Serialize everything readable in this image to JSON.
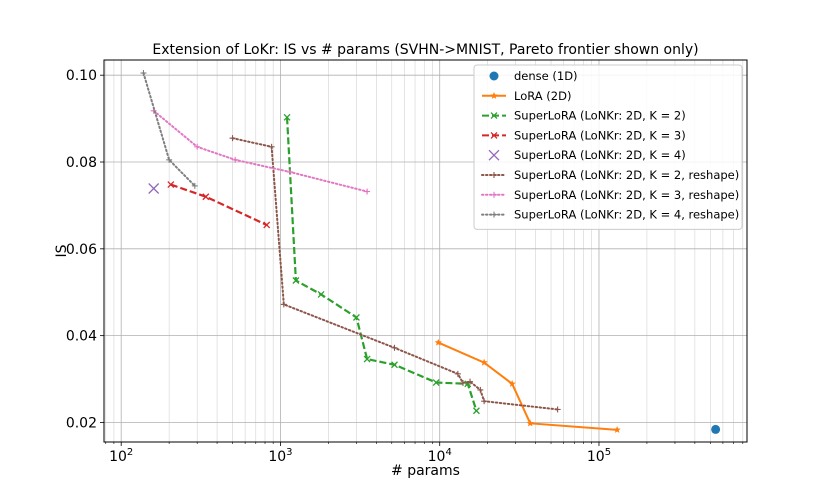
{
  "chart_data": {
    "type": "line",
    "title": "Extension of LoKr: IS vs # params (SVHN->MNIST, Pareto frontier shown only)",
    "xlabel": "# params",
    "ylabel": "IS",
    "xscale": "log",
    "xlim": [
      78,
      850000
    ],
    "ylim": [
      0.0155,
      0.1035
    ],
    "xticks": [
      {
        "value": 100,
        "base": "10",
        "exp": "2"
      },
      {
        "value": 1000,
        "base": "10",
        "exp": "3"
      },
      {
        "value": 10000,
        "base": "10",
        "exp": "4"
      },
      {
        "value": 100000,
        "base": "10",
        "exp": "5"
      }
    ],
    "yticks": [
      {
        "value": 0.02,
        "label": "0.02"
      },
      {
        "value": 0.04,
        "label": "0.04"
      },
      {
        "value": 0.06,
        "label": "0.06"
      },
      {
        "value": 0.08,
        "label": "0.08"
      },
      {
        "value": 0.1,
        "label": "0.10"
      }
    ],
    "grid": true,
    "legend_position": "top-right",
    "series": [
      {
        "name": "dense (1D)",
        "color": "#1f77b4",
        "style": "dot",
        "marker": "circle",
        "x": [
          540000
        ],
        "y": [
          0.0184
        ]
      },
      {
        "name": "LoRA (2D)",
        "color": "#ff7f0e",
        "style": "solid",
        "marker": "star",
        "x": [
          9800,
          19000,
          28500,
          37000,
          130000
        ],
        "y": [
          0.0384,
          0.0338,
          0.0289,
          0.0198,
          0.0183
        ]
      },
      {
        "name": "SuperLoRA (LoNKr: 2D, K = 2)",
        "color": "#2ca02c",
        "style": "dashed",
        "marker": "x",
        "x": [
          1100,
          1250,
          1800,
          3000,
          3500,
          5200,
          9500,
          15000,
          17000
        ],
        "y": [
          0.0903,
          0.0527,
          0.0495,
          0.0442,
          0.0346,
          0.0333,
          0.0292,
          0.0289,
          0.0227
        ]
      },
      {
        "name": "SuperLoRA (LoNKr: 2D, K = 3)",
        "color": "#d62728",
        "style": "dashed",
        "marker": "x",
        "x": [
          205,
          340,
          820
        ],
        "y": [
          0.0748,
          0.072,
          0.0655
        ]
      },
      {
        "name": "SuperLoRA (LoNKr: 2D, K = 4)",
        "color": "#9467bd",
        "style": "dot",
        "marker": "x",
        "x": [
          160
        ],
        "y": [
          0.0739
        ]
      },
      {
        "name": "SuperLoRA (LoNKr: 2D, K = 2, reshape)",
        "color": "#8c564b",
        "style": "dotted",
        "marker": "plus",
        "x": [
          500,
          880,
          1050,
          5200,
          13000,
          14000,
          15500,
          18000,
          19000,
          55000
        ],
        "y": [
          0.0855,
          0.0835,
          0.0472,
          0.0372,
          0.0312,
          0.0291,
          0.0294,
          0.0275,
          0.0249,
          0.023
        ]
      },
      {
        "name": "SuperLoRA (LoNKr: 2D, K = 3, reshape)",
        "color": "#e377c2",
        "style": "dotted",
        "marker": "plus",
        "x": [
          160,
          300,
          520,
          1150,
          3500
        ],
        "y": [
          0.0918,
          0.0835,
          0.0805,
          0.0777,
          0.0732
        ]
      },
      {
        "name": "SuperLoRA (LoNKr: 2D, K = 4, reshape)",
        "color": "#7f7f7f",
        "style": "dotted",
        "marker": "plus",
        "x": [
          138,
          200,
          290
        ],
        "y": [
          0.1005,
          0.0805,
          0.0745
        ]
      }
    ]
  }
}
